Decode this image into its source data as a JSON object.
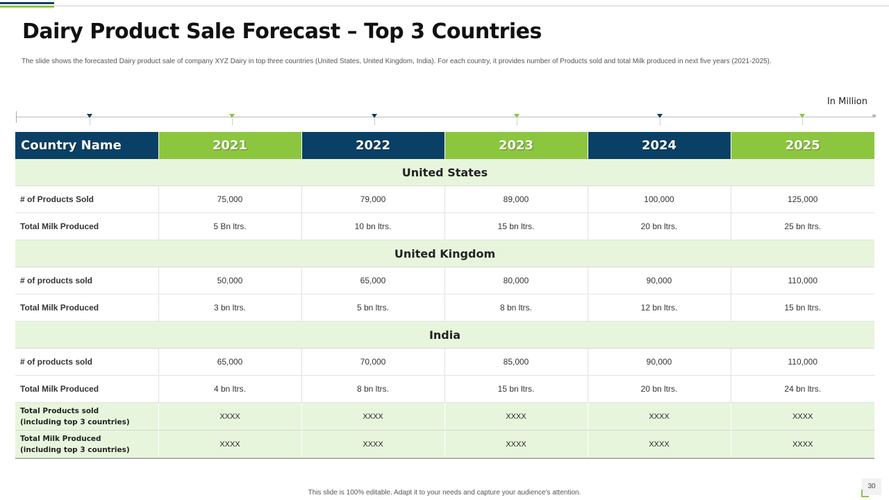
{
  "title": "Dairy Product Sale Forecast – Top 3 Countries",
  "subtitle": "The slide shows the forecasted Dairy product sale of company XYZ Dairy in  top three countries (United States, United Kingdom, India).  For each country, it provides number of Products sold and total Milk  produced in next five years (2021-2025).",
  "unit": "In Million",
  "colors": {
    "navy": "#0a4065",
    "green": "#8cc63f",
    "light_green": "#e8f5dd"
  },
  "table": {
    "headers": [
      "Country Name",
      "2021",
      "2022",
      "2023",
      "2024",
      "2025"
    ],
    "sections": [
      {
        "name": "United States",
        "rows": [
          {
            "label": "# of Products Sold",
            "values": [
              "75,000",
              "79,000",
              "89,000",
              "100,000",
              "125,000"
            ]
          },
          {
            "label": "Total Milk Produced",
            "values": [
              "5 Bn ltrs.",
              "10 bn ltrs.",
              "15 bn ltrs.",
              "20 bn ltrs.",
              "25 bn ltrs."
            ]
          }
        ]
      },
      {
        "name": "United Kingdom",
        "rows": [
          {
            "label": "# of products sold",
            "values": [
              "50,000",
              "65,000",
              "80,000",
              "90,000",
              "110,000"
            ]
          },
          {
            "label": "Total Milk Produced",
            "values": [
              "3 bn ltrs.",
              "5 bn ltrs.",
              "8 bn ltrs.",
              "12 bn ltrs.",
              "15 bn ltrs."
            ]
          }
        ]
      },
      {
        "name": "India",
        "rows": [
          {
            "label": "# of products sold",
            "values": [
              "65,000",
              "70,000",
              "85,000",
              "90,000",
              "110,000"
            ]
          },
          {
            "label": "Total Milk Produced",
            "values": [
              "4 bn ltrs.",
              "8 bn ltrs.",
              "15 bn ltrs.",
              "20 bn ltrs.",
              "24 bn ltrs."
            ]
          }
        ]
      }
    ],
    "totals": [
      {
        "label_line1": "Total Products sold",
        "label_line2": "(including top 3 countries)",
        "values": [
          "XXXX",
          "XXXX",
          "XXXX",
          "XXXX",
          "XXXX"
        ]
      },
      {
        "label_line1": "Total Milk Produced",
        "label_line2": "(including top 3 countries)",
        "values": [
          "XXXX",
          "XXXX",
          "XXXX",
          "XXXX",
          "XXXX"
        ]
      }
    ]
  },
  "footer": "This slide is 100% editable. Adapt it to your needs and capture your audience's attention.",
  "page_number": "30"
}
